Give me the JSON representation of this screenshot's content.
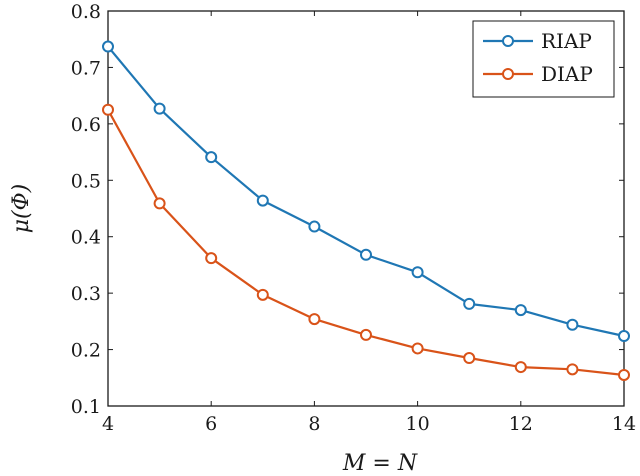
{
  "chart_data": {
    "type": "line",
    "title": "",
    "xlabel": "M = N",
    "ylabel": "μ(Φ)",
    "xlim": [
      4,
      14
    ],
    "ylim": [
      0.1,
      0.8
    ],
    "xticks": [
      4,
      6,
      8,
      10,
      12,
      14
    ],
    "yticks": [
      0.1,
      0.2,
      0.3,
      0.4,
      0.5,
      0.6,
      0.7,
      0.8
    ],
    "grid": false,
    "legend_position": "top-right",
    "x": [
      4,
      5,
      6,
      7,
      8,
      9,
      10,
      11,
      12,
      13,
      14
    ],
    "series": [
      {
        "name": "RIAP",
        "color": "#1f77b4",
        "marker": "circle",
        "values": [
          0.737,
          0.627,
          0.541,
          0.464,
          0.418,
          0.368,
          0.337,
          0.281,
          0.27,
          0.244,
          0.224
        ]
      },
      {
        "name": "DIAP",
        "color": "#d95319",
        "marker": "circle",
        "values": [
          0.625,
          0.459,
          0.362,
          0.297,
          0.254,
          0.226,
          0.202,
          0.185,
          0.169,
          0.165,
          0.155
        ]
      }
    ]
  }
}
